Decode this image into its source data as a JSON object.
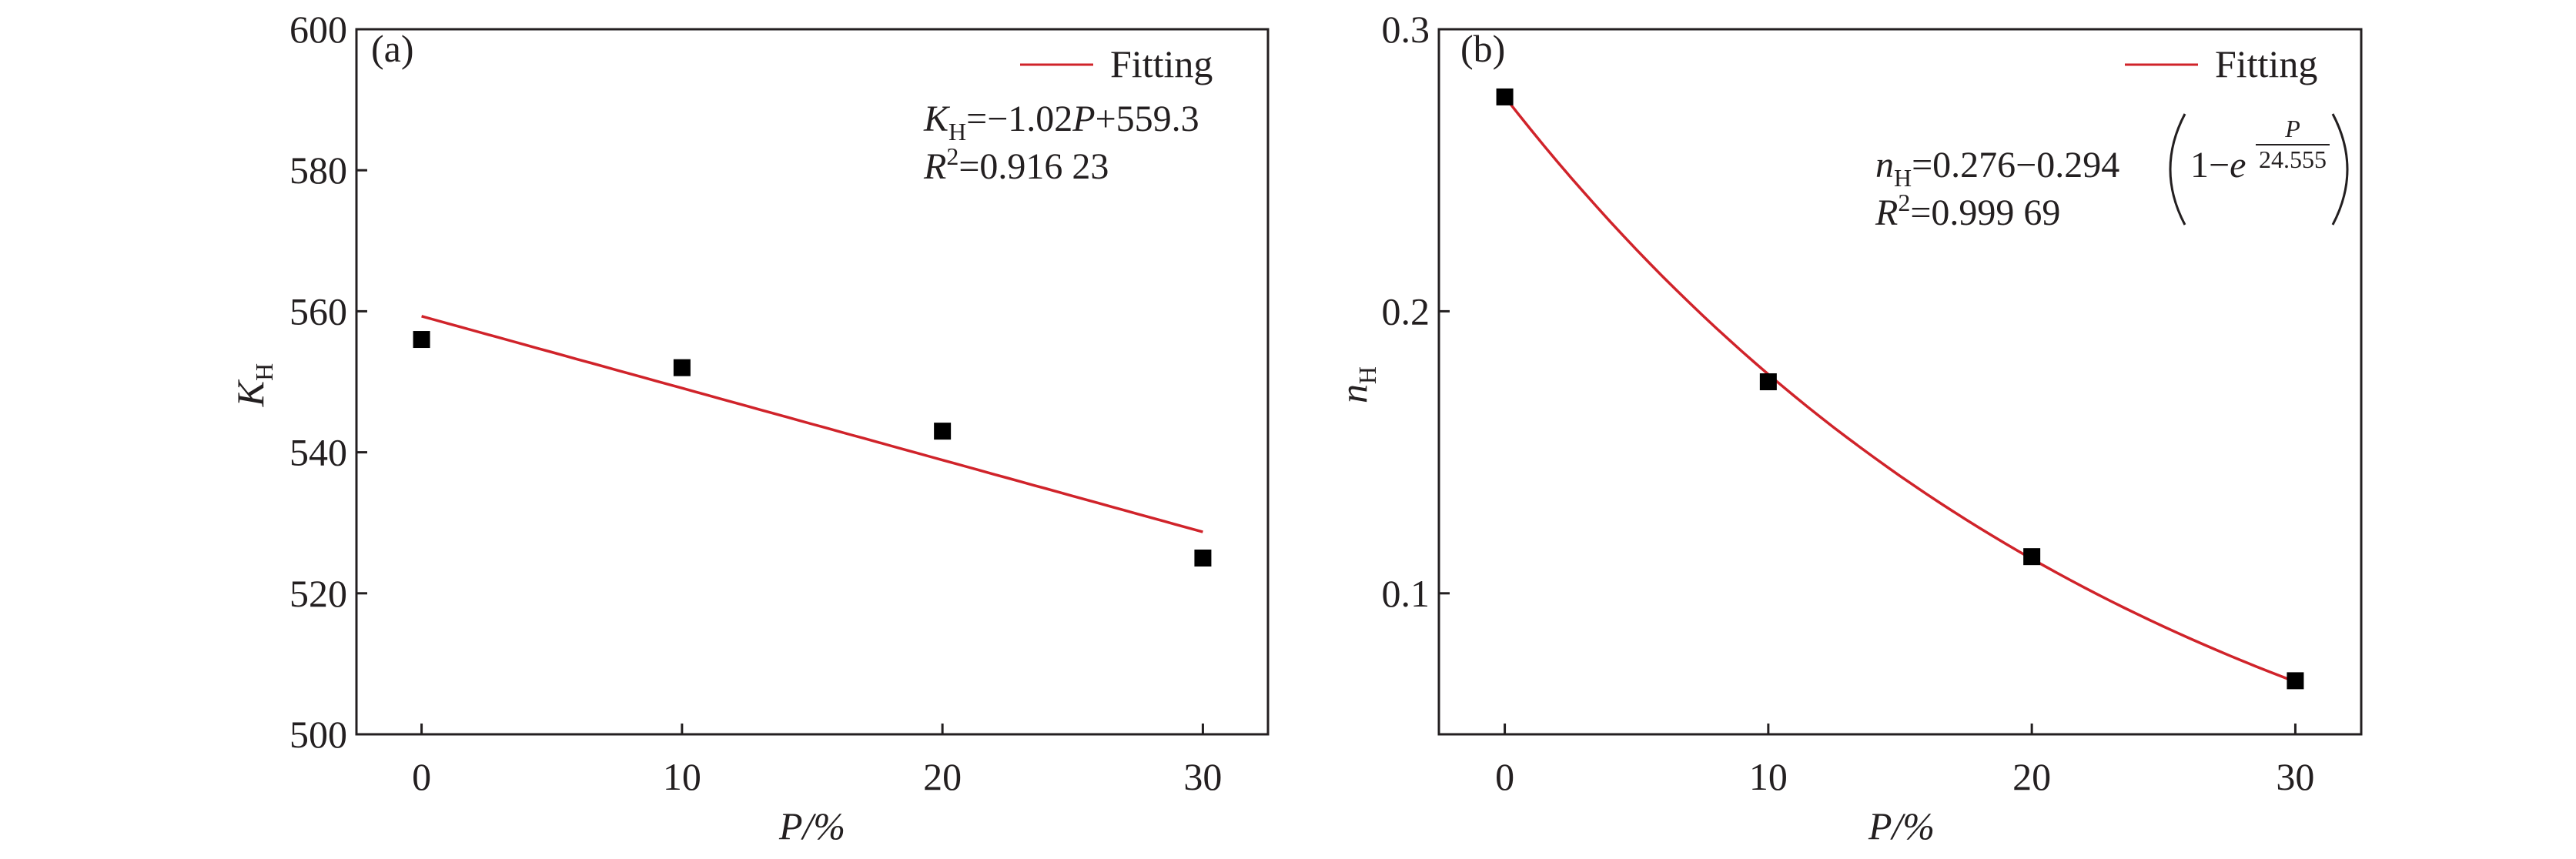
{
  "chart_data": [
    {
      "type": "scatter",
      "panel_label": "(a)",
      "xlabel": "P/%",
      "ylabel": "K_H",
      "ylabel_main": "K",
      "ylabel_sub": "H",
      "xlim": [
        -2.5,
        32.5
      ],
      "ylim": [
        500,
        600
      ],
      "xticks": [
        0,
        10,
        20,
        30
      ],
      "yticks": [
        500,
        520,
        540,
        560,
        580,
        600
      ],
      "grid": false,
      "legend": {
        "position": "top-right",
        "entries": [
          "Fitting"
        ]
      },
      "series": [
        {
          "type": "scatter",
          "x": [
            0,
            10,
            20,
            30
          ],
          "values": [
            556,
            552,
            543,
            525
          ],
          "marker": "square",
          "color": "#000000"
        },
        {
          "type": "line",
          "name": "Fitting",
          "model": "linear",
          "slope": -1.02,
          "intercept": 559.3,
          "x_range": [
            0,
            30
          ],
          "color": "#d0232a"
        }
      ],
      "annotations": {
        "equation_lhs": "K",
        "equation_lhs_sub": "H",
        "equation_rhs1": "=−1.02",
        "equation_var": "P",
        "equation_rhs2": "+559.3",
        "r2_label": "R",
        "r2_sup": "2",
        "r2_value": "=0.916 23"
      }
    },
    {
      "type": "scatter",
      "panel_label": "(b)",
      "xlabel": "P/%",
      "ylabel": "n_H",
      "ylabel_main": "n",
      "ylabel_sub": "H",
      "xlim": [
        -2.5,
        32.5
      ],
      "ylim": [
        0.05,
        0.3
      ],
      "xticks": [
        0,
        10,
        20,
        30
      ],
      "yticks": [
        0.1,
        0.2,
        0.3
      ],
      "grid": false,
      "legend": {
        "position": "top-right",
        "entries": [
          "Fitting"
        ]
      },
      "series": [
        {
          "type": "scatter",
          "x": [
            0,
            10,
            20,
            30
          ],
          "values": [
            0.276,
            0.175,
            0.113,
            0.069
          ],
          "marker": "square",
          "color": "#000000"
        },
        {
          "type": "line",
          "name": "Fitting",
          "model": "exponential",
          "a": 0.276,
          "b": 0.294,
          "t": 24.555,
          "x_range": [
            0,
            30
          ],
          "color": "#d0232a"
        }
      ],
      "annotations": {
        "equation_lhs": "n",
        "equation_lhs_sub": "H",
        "equation_rhs": "=0.276−0.294",
        "paren_inner": "1−",
        "exp_base": "e",
        "exp_num": "P",
        "exp_den": "24.555",
        "r2_label": "R",
        "r2_sup": "2",
        "r2_value": "=0.999 69"
      }
    }
  ]
}
